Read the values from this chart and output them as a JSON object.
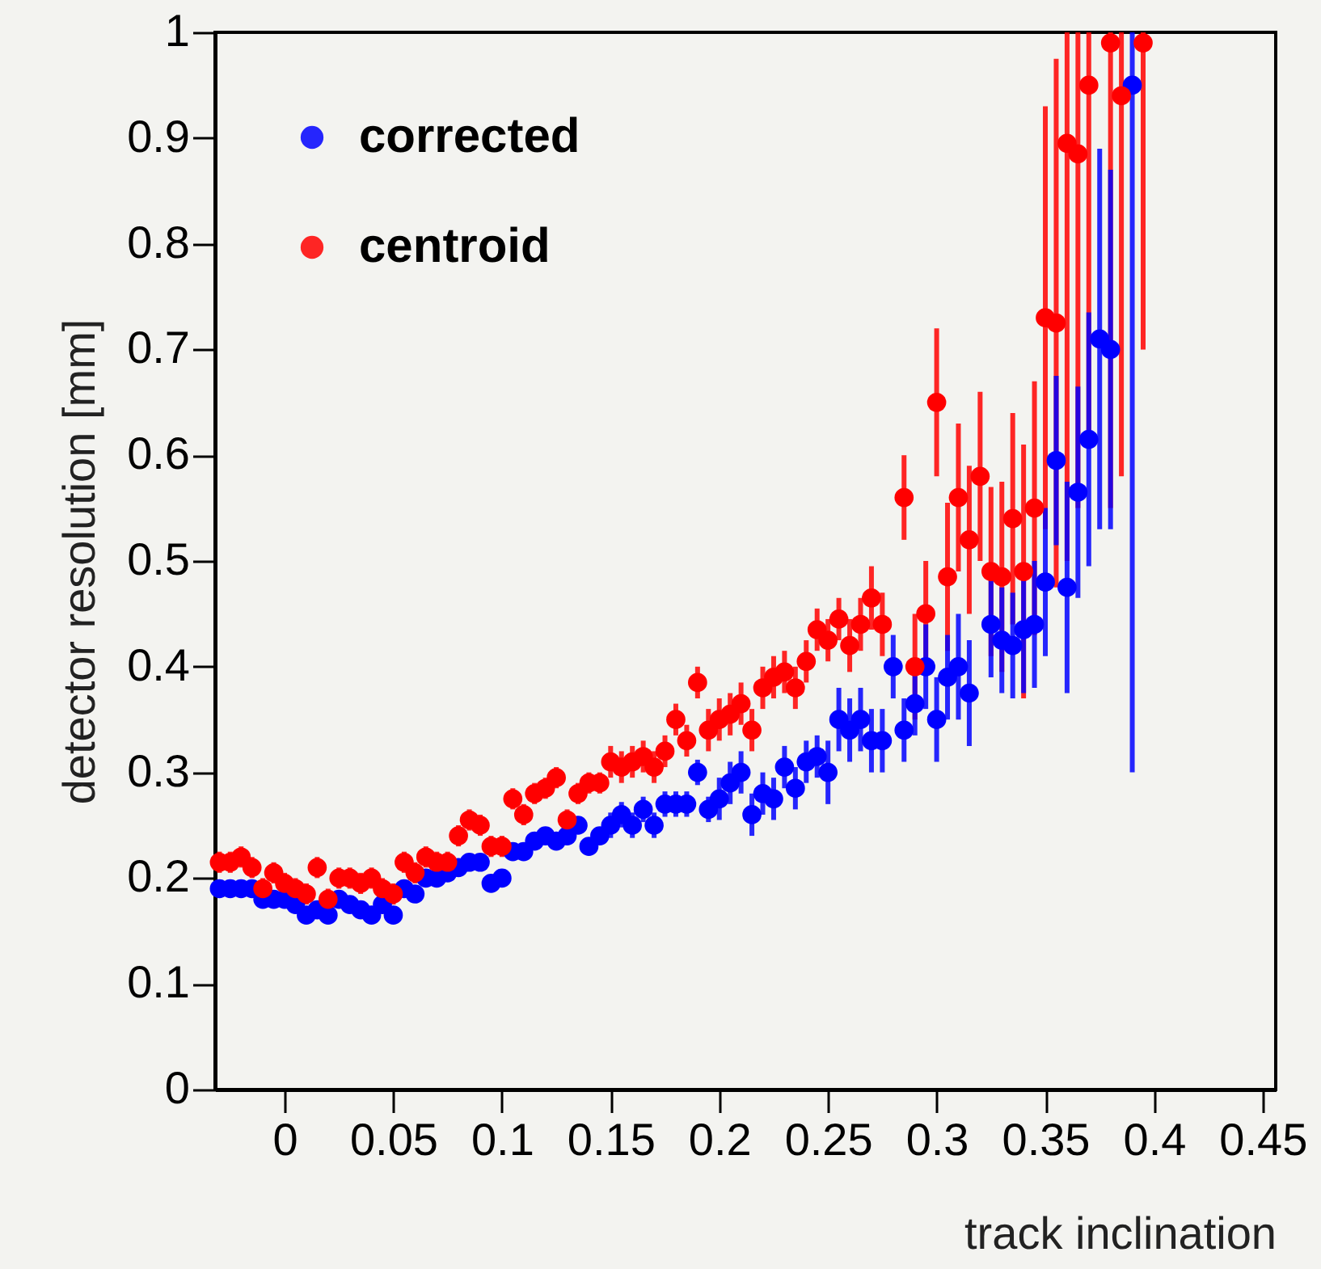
{
  "chart_data": {
    "type": "scatter",
    "xlabel": "track inclination",
    "ylabel": "detector resolution [mm]",
    "xlim": [
      -0.032,
      0.456
    ],
    "xticks": [
      0,
      0.05,
      0.1,
      0.15,
      0.2,
      0.25,
      0.3,
      0.35,
      0.4,
      0.45
    ],
    "ylim": [
      0,
      1
    ],
    "yticks": [
      0,
      0.1,
      0.2,
      0.3,
      0.4,
      0.5,
      0.6,
      0.7,
      0.8,
      0.9,
      1
    ],
    "grid": false,
    "legend": "top left",
    "marker": "circle",
    "series": [
      {
        "name": "corrected",
        "color": "#0000ff",
        "x": [
          -0.03,
          -0.025,
          -0.02,
          -0.015,
          -0.01,
          -0.005,
          0,
          0.005,
          0.01,
          0.015,
          0.02,
          0.025,
          0.03,
          0.035,
          0.04,
          0.045,
          0.05,
          0.055,
          0.06,
          0.065,
          0.07,
          0.075,
          0.08,
          0.085,
          0.09,
          0.095,
          0.1,
          0.105,
          0.11,
          0.115,
          0.12,
          0.125,
          0.13,
          0.135,
          0.14,
          0.145,
          0.15,
          0.155,
          0.16,
          0.165,
          0.17,
          0.175,
          0.18,
          0.185,
          0.19,
          0.195,
          0.2,
          0.205,
          0.21,
          0.215,
          0.22,
          0.225,
          0.23,
          0.235,
          0.24,
          0.245,
          0.25,
          0.255,
          0.26,
          0.265,
          0.27,
          0.275,
          0.28,
          0.285,
          0.29,
          0.295,
          0.3,
          0.305,
          0.31,
          0.315,
          0.325,
          0.33,
          0.335,
          0.34,
          0.345,
          0.35,
          0.355,
          0.36,
          0.365,
          0.37,
          0.375,
          0.38,
          0.39
        ],
        "values": [
          0.19,
          0.19,
          0.19,
          0.19,
          0.18,
          0.18,
          0.18,
          0.175,
          0.165,
          0.17,
          0.165,
          0.18,
          0.175,
          0.17,
          0.165,
          0.175,
          0.165,
          0.19,
          0.185,
          0.2,
          0.2,
          0.205,
          0.21,
          0.215,
          0.215,
          0.195,
          0.2,
          0.225,
          0.225,
          0.235,
          0.24,
          0.235,
          0.24,
          0.25,
          0.23,
          0.24,
          0.25,
          0.26,
          0.25,
          0.265,
          0.25,
          0.27,
          0.27,
          0.27,
          0.3,
          0.265,
          0.275,
          0.29,
          0.3,
          0.26,
          0.28,
          0.275,
          0.305,
          0.285,
          0.31,
          0.315,
          0.3,
          0.35,
          0.34,
          0.35,
          0.33,
          0.33,
          0.4,
          0.34,
          0.365,
          0.4,
          0.35,
          0.39,
          0.4,
          0.375,
          0.44,
          0.425,
          0.42,
          0.435,
          0.44,
          0.48,
          0.595,
          0.475,
          0.565,
          0.615,
          0.71,
          0.7,
          0.95
        ],
        "errors": [
          0.008,
          0.008,
          0.008,
          0.008,
          0.008,
          0.008,
          0.008,
          0.008,
          0.008,
          0.008,
          0.008,
          0.008,
          0.008,
          0.008,
          0.008,
          0.008,
          0.008,
          0.008,
          0.008,
          0.008,
          0.008,
          0.008,
          0.008,
          0.008,
          0.008,
          0.008,
          0.008,
          0.008,
          0.008,
          0.008,
          0.008,
          0.008,
          0.008,
          0.008,
          0.008,
          0.008,
          0.012,
          0.012,
          0.012,
          0.012,
          0.012,
          0.012,
          0.012,
          0.012,
          0.012,
          0.012,
          0.02,
          0.02,
          0.02,
          0.02,
          0.02,
          0.02,
          0.02,
          0.02,
          0.02,
          0.02,
          0.03,
          0.03,
          0.03,
          0.03,
          0.03,
          0.03,
          0.03,
          0.03,
          0.03,
          0.04,
          0.04,
          0.04,
          0.05,
          0.05,
          0.05,
          0.05,
          0.05,
          0.06,
          0.06,
          0.07,
          0.08,
          0.1,
          0.1,
          0.12,
          0.18,
          0.17,
          [
            0.3,
            1
          ]
        ]
      },
      {
        "name": "centroid",
        "color": "#ff0000",
        "x": [
          -0.03,
          -0.025,
          -0.02,
          -0.015,
          -0.01,
          -0.005,
          0,
          0.005,
          0.01,
          0.015,
          0.02,
          0.025,
          0.03,
          0.035,
          0.04,
          0.045,
          0.05,
          0.055,
          0.06,
          0.065,
          0.07,
          0.075,
          0.08,
          0.085,
          0.09,
          0.095,
          0.1,
          0.105,
          0.11,
          0.115,
          0.12,
          0.125,
          0.13,
          0.135,
          0.14,
          0.145,
          0.15,
          0.155,
          0.16,
          0.165,
          0.17,
          0.175,
          0.18,
          0.185,
          0.19,
          0.195,
          0.2,
          0.205,
          0.21,
          0.215,
          0.22,
          0.225,
          0.23,
          0.235,
          0.24,
          0.245,
          0.25,
          0.255,
          0.26,
          0.265,
          0.27,
          0.275,
          0.285,
          0.29,
          0.295,
          0.3,
          0.305,
          0.31,
          0.315,
          0.32,
          0.325,
          0.33,
          0.335,
          0.34,
          0.345,
          0.35,
          0.355,
          0.36,
          0.365,
          0.37,
          0.38,
          0.385,
          0.395
        ],
        "values": [
          0.215,
          0.215,
          0.22,
          0.21,
          0.19,
          0.205,
          0.195,
          0.19,
          0.185,
          0.21,
          0.18,
          0.2,
          0.2,
          0.195,
          0.2,
          0.19,
          0.185,
          0.215,
          0.205,
          0.22,
          0.215,
          0.215,
          0.24,
          0.255,
          0.25,
          0.23,
          0.23,
          0.275,
          0.26,
          0.28,
          0.285,
          0.295,
          0.255,
          0.28,
          0.29,
          0.29,
          0.31,
          0.305,
          0.31,
          0.315,
          0.305,
          0.32,
          0.35,
          0.33,
          0.385,
          0.34,
          0.35,
          0.355,
          0.365,
          0.34,
          0.38,
          0.39,
          0.395,
          0.38,
          0.405,
          0.435,
          0.425,
          0.445,
          0.42,
          0.44,
          0.465,
          0.44,
          0.56,
          0.4,
          0.45,
          0.65,
          0.485,
          0.56,
          0.52,
          0.58,
          0.49,
          0.485,
          0.54,
          0.49,
          0.55,
          0.73,
          0.725,
          0.895,
          0.885,
          0.95,
          0.99,
          0.94,
          0.99
        ],
        "errors": [
          0.01,
          0.01,
          0.01,
          0.01,
          0.01,
          0.01,
          0.01,
          0.01,
          0.01,
          0.01,
          0.01,
          0.01,
          0.01,
          0.01,
          0.01,
          0.01,
          0.01,
          0.01,
          0.01,
          0.01,
          0.01,
          0.01,
          0.01,
          0.01,
          0.01,
          0.01,
          0.01,
          0.01,
          0.01,
          0.01,
          0.01,
          0.01,
          0.01,
          0.01,
          0.01,
          0.01,
          0.015,
          0.015,
          0.015,
          0.015,
          0.015,
          0.015,
          0.015,
          0.015,
          0.015,
          0.02,
          0.02,
          0.02,
          0.02,
          0.02,
          0.02,
          0.02,
          0.02,
          0.02,
          0.02,
          0.02,
          0.02,
          0.02,
          0.025,
          0.025,
          0.03,
          0.03,
          0.04,
          0.05,
          0.05,
          0.07,
          0.07,
          0.07,
          0.07,
          0.08,
          0.08,
          0.09,
          0.1,
          0.12,
          0.12,
          0.2,
          0.25,
          [
            0.5,
            1
          ],
          [
            0.55,
            1
          ],
          [
            0.62,
            1
          ],
          [
            0.55,
            1
          ],
          [
            0.58,
            1
          ],
          [
            0.7,
            1
          ]
        ]
      }
    ]
  }
}
